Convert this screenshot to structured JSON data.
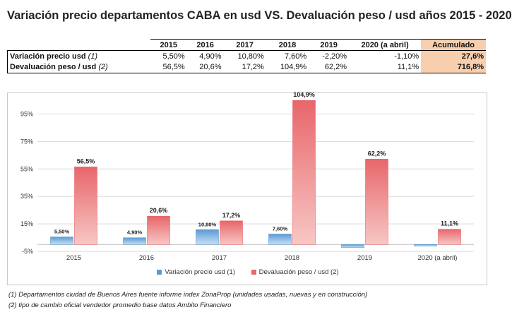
{
  "title": "Variación precio departamentos CABA en usd  VS. Devaluación peso / usd años 2015 - 2020",
  "table": {
    "headers": [
      "2015",
      "2016",
      "2017",
      "2018",
      "2019",
      "2020 (a abril)"
    ],
    "accumulated_header": "Acumulado",
    "rows": [
      {
        "label": "Variación precio usd",
        "note": "(1)",
        "values": [
          "5,50%",
          "4,90%",
          "10,80%",
          "7,60%",
          "-2,20%",
          "-1,10%"
        ],
        "accumulated": "27,6%"
      },
      {
        "label": "Devaluación peso / usd",
        "note": "(2)",
        "values": [
          "56,5%",
          "20,6%",
          "17,2%",
          "104,9%",
          "62,2%",
          "11,1%"
        ],
        "accumulated": "716,8%"
      }
    ]
  },
  "chart_data": {
    "type": "bar",
    "categories": [
      "2015",
      "2016",
      "2017",
      "2018",
      "2019",
      "2020 (a abril)"
    ],
    "series": [
      {
        "name": "Variación precio usd (1)",
        "color": "#5b9bd5",
        "values": [
          5.5,
          4.9,
          10.8,
          7.6,
          -2.2,
          -1.1
        ],
        "labels": [
          "5,50%",
          "4,90%",
          "10,80%",
          "7,60%",
          "",
          ""
        ]
      },
      {
        "name": "Devaluación peso / usd (2)",
        "color": "#e8666b",
        "values": [
          56.5,
          20.6,
          17.2,
          104.9,
          62.2,
          11.1
        ],
        "labels": [
          "56,5%",
          "20,6%",
          "17,2%",
          "104,9%",
          "62,2%",
          "11,1%"
        ]
      }
    ],
    "yticks": [
      "-5%",
      "15%",
      "35%",
      "55%",
      "75%",
      "95%"
    ],
    "ytick_values": [
      -5,
      15,
      35,
      55,
      75,
      95
    ],
    "ylim": [
      -5,
      105
    ],
    "grid": true,
    "legend": "bottom"
  },
  "footnotes": [
    "(1) Departamentos ciudad de Buenos Aires fuente informe index ZonaProp (unidades usadas, nuevas y en construcción)",
    "(2) tipo de cambio oficial vendedor promedio base datos Ambito Financiero"
  ]
}
